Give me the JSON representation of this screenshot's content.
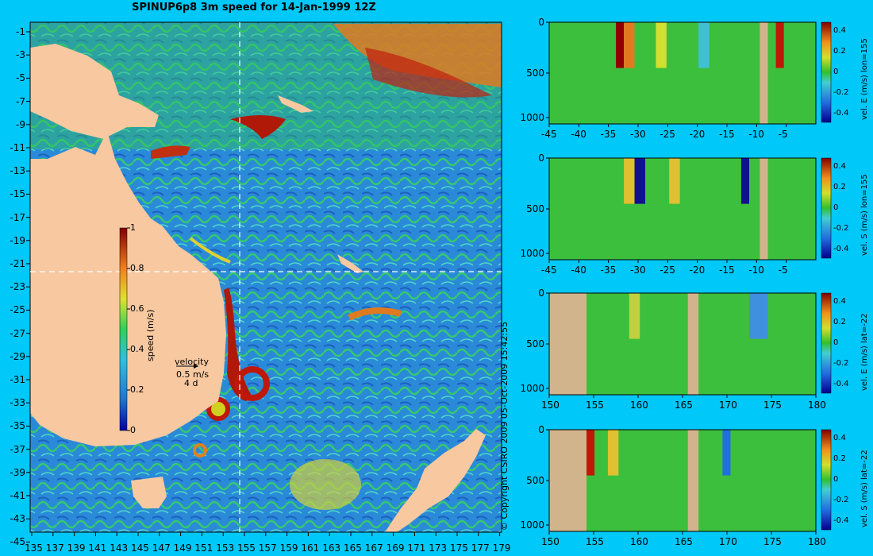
{
  "title": "SPINUP6p8 3m speed for 14-Jan-1999 12Z",
  "copyright": "© Copyright CSIRO 2009   05-Oct-2009 15:42:55",
  "map": {
    "x_ticks": [
      "135",
      "137",
      "139",
      "141",
      "143",
      "145",
      "147",
      "149",
      "151",
      "153",
      "155",
      "157",
      "159",
      "161",
      "163",
      "165",
      "167",
      "169",
      "171",
      "173",
      "175",
      "177",
      "179"
    ],
    "y_ticks": [
      "-1",
      "-3",
      "-5",
      "-7",
      "-9",
      "-11",
      "-13",
      "-15",
      "-17",
      "-19",
      "-21",
      "-23",
      "-25",
      "-27",
      "-29",
      "-31",
      "-33",
      "-35",
      "-37",
      "-39",
      "-41",
      "-43",
      "-45"
    ],
    "colorbar": {
      "label": "speed (m/s)",
      "ticks": [
        "1",
        "0.8",
        "0.6",
        "0.4",
        "0.2",
        "0"
      ]
    },
    "legend": {
      "title": "velocity",
      "speed": "0.5 m/s",
      "days": "4 d"
    },
    "section_lon": 155,
    "section_lat": -22,
    "colors": {
      "land": "#f8c8a0",
      "ocean_low": "#1e73d0",
      "ocean_mid": "#2fd05a",
      "ocean_high": "#c00000"
    }
  },
  "panels": [
    {
      "ylabel": "vel. E (m/s) lon=155",
      "x_ticks": [
        "-45",
        "-40",
        "-35",
        "-30",
        "-25",
        "-20",
        "-15",
        "-10",
        "-5"
      ],
      "y_ticks": [
        "0",
        "500",
        "1000"
      ],
      "cb_ticks": [
        "0.4",
        "0.2",
        "0",
        "-0.2",
        "-0.4"
      ]
    },
    {
      "ylabel": "vel. S (m/s) lon=155",
      "x_ticks": [
        "-45",
        "-40",
        "-35",
        "-30",
        "-25",
        "-20",
        "-15",
        "-10",
        "-5"
      ],
      "y_ticks": [
        "0",
        "500",
        "1000"
      ],
      "cb_ticks": [
        "0.4",
        "0.2",
        "0",
        "-0.2",
        "-0.4"
      ]
    },
    {
      "ylabel": "vel. E (m/s) lat=-22",
      "x_ticks": [
        "150",
        "155",
        "160",
        "165",
        "170",
        "175",
        "180"
      ],
      "y_ticks": [
        "0",
        "500",
        "1000"
      ],
      "cb_ticks": [
        "0.4",
        "0.2",
        "0",
        "-0.2",
        "-0.4"
      ]
    },
    {
      "ylabel": "vel. S (m/s) lat=-22",
      "x_ticks": [
        "150",
        "155",
        "160",
        "165",
        "170",
        "175",
        "180"
      ],
      "y_ticks": [
        "0",
        "500",
        "1000"
      ],
      "cb_ticks": [
        "0.4",
        "0.2",
        "0",
        "-0.2",
        "-0.4"
      ]
    }
  ],
  "chart_data": {
    "type": "heatmap",
    "variable": "3m ocean current speed",
    "units": "m/s",
    "lon_range": [
      135,
      180
    ],
    "lat_range": [
      -45,
      0
    ],
    "colorbar_range": [
      0,
      1
    ],
    "section_range": [
      -0.4,
      0.4
    ],
    "depth_range": [
      0,
      1000
    ]
  }
}
